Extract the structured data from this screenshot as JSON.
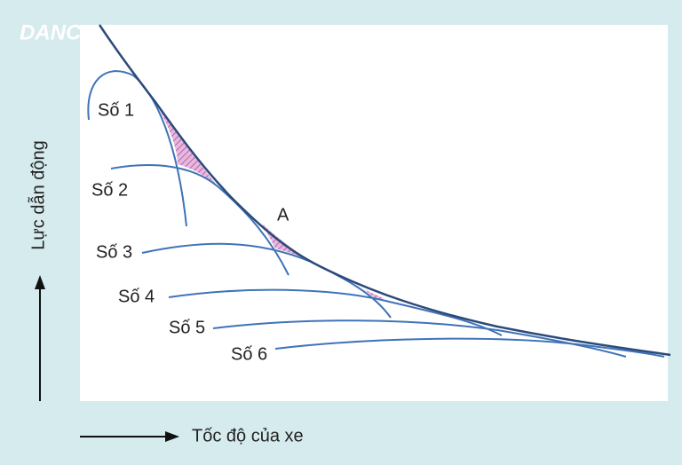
{
  "logo": "DANCH",
  "axes": {
    "y_label": "Lực dẫn động",
    "x_label": "Tốc độ của xe"
  },
  "gears": [
    {
      "label": "Số 1"
    },
    {
      "label": "Số 2"
    },
    {
      "label": "Số 3"
    },
    {
      "label": "Số 4"
    },
    {
      "label": "Số 5"
    },
    {
      "label": "Số 6"
    }
  ],
  "point_label": "A"
}
